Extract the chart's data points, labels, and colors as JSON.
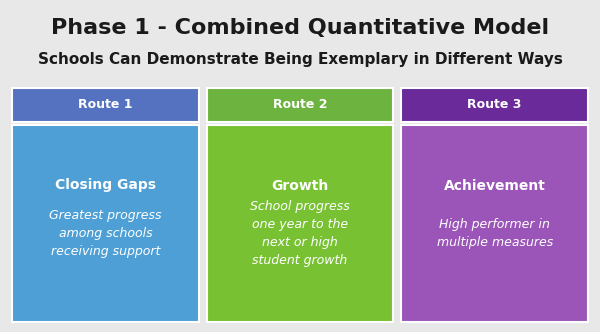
{
  "title": "Phase 1 - Combined Quantitative Model",
  "subtitle": "Schools Can Demonstrate Being Exemplary in Different Ways",
  "background_color": "#e8e8e8",
  "routes": [
    {
      "label": "Route 1",
      "header_color": "#5572c0",
      "body_color": "#4d9fd6",
      "title": "Closing Gaps",
      "body": "Greatest progress\namong schools\nreceiving support"
    },
    {
      "label": "Route 2",
      "header_color": "#6db33f",
      "body_color": "#78c132",
      "title": "Growth",
      "body": "School progress\none year to the\nnext or high\nstudent growth"
    },
    {
      "label": "Route 3",
      "header_color": "#6b2a9a",
      "body_color": "#9b55b8",
      "title": "Achievement",
      "body": "High performer in\nmultiple measures"
    }
  ],
  "title_fontsize": 16,
  "subtitle_fontsize": 11,
  "route_label_fontsize": 9,
  "route_title_fontsize": 10,
  "route_body_fontsize": 9
}
